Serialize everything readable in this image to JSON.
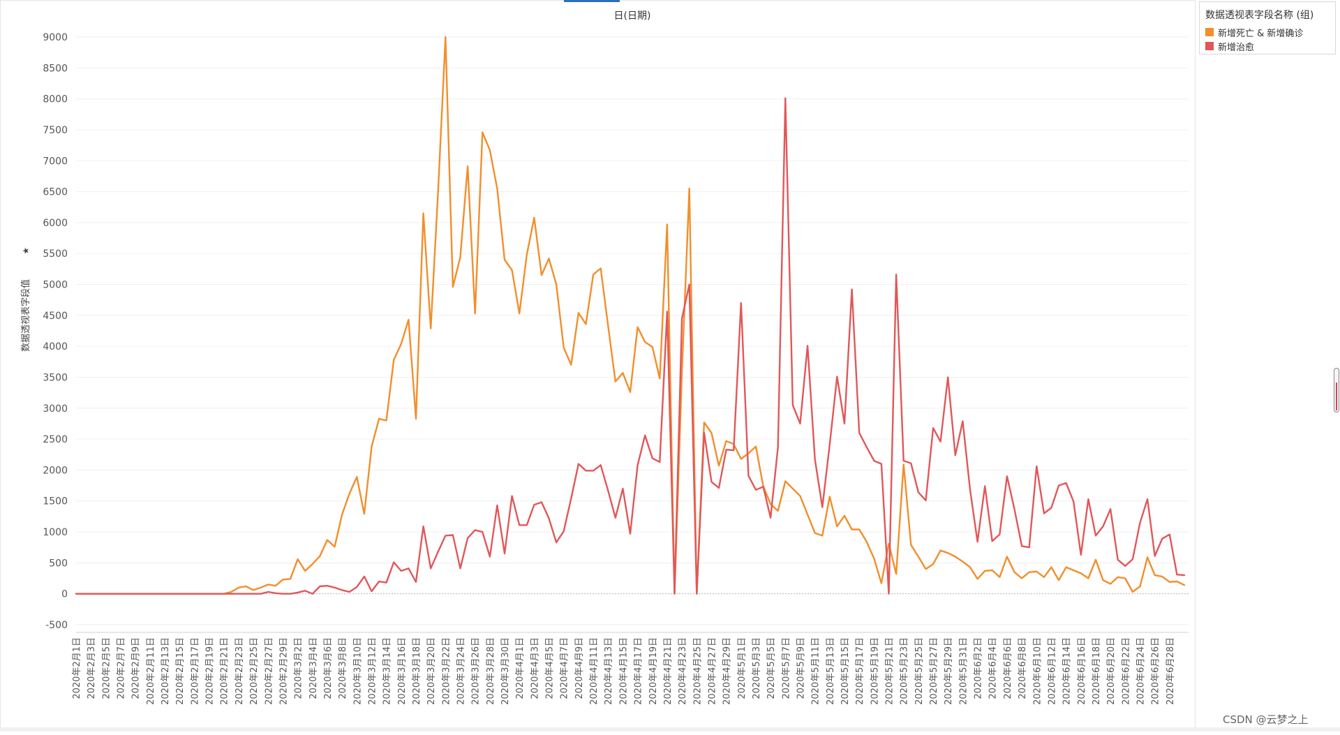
{
  "chart_data": {
    "type": "line",
    "title": "日(日期)",
    "ylabel": "数据透视表字段值",
    "ylim": [
      -500,
      9000
    ],
    "yticks": [
      -500,
      0,
      500,
      1000,
      1500,
      2000,
      2500,
      3000,
      3500,
      4000,
      4500,
      5000,
      5500,
      6000,
      6500,
      7000,
      7500,
      8000,
      8500,
      9000
    ],
    "x_start": "2020-02-01",
    "x_end": "2020-06-30",
    "x_tick_labels": [
      "2020年2月1日",
      "2020年2月3日",
      "2020年2月5日",
      "2020年2月7日",
      "2020年2月9日",
      "2020年2月11日",
      "2020年2月13日",
      "2020年2月15日",
      "2020年2月17日",
      "2020年2月19日",
      "2020年2月21日",
      "2020年2月23日",
      "2020年2月25日",
      "2020年2月27日",
      "2020年2月29日",
      "2020年3月2日",
      "2020年3月4日",
      "2020年3月6日",
      "2020年3月8日",
      "2020年3月10日",
      "2020年3月12日",
      "2020年3月14日",
      "2020年3月16日",
      "2020年3月18日",
      "2020年3月20日",
      "2020年3月22日",
      "2020年3月24日",
      "2020年3月26日",
      "2020年3月28日",
      "2020年3月30日",
      "2020年4月1日",
      "2020年4月3日",
      "2020年4月5日",
      "2020年4月7日",
      "2020年4月9日",
      "2020年4月11日",
      "2020年4月13日",
      "2020年4月15日",
      "2020年4月17日",
      "2020年4月19日",
      "2020年4月21日",
      "2020年4月23日",
      "2020年4月25日",
      "2020年4月27日",
      "2020年4月29日",
      "2020年5月1日",
      "2020年5月3日",
      "2020年5月5日",
      "2020年5月7日",
      "2020年5月9日",
      "2020年5月11日",
      "2020年5月13日",
      "2020年5月15日",
      "2020年5月17日",
      "2020年5月19日",
      "2020年5月21日",
      "2020年5月23日",
      "2020年5月25日",
      "2020年5月27日",
      "2020年5月29日",
      "2020年5月31日",
      "2020年6月2日",
      "2020年6月4日",
      "2020年6月6日",
      "2020年6月8日",
      "2020年6月10日",
      "2020年6月12日",
      "2020年6月14日",
      "2020年6月16日",
      "2020年6月18日",
      "2020年6月20日",
      "2020年6月22日",
      "2020年6月24日",
      "2020年6月26日",
      "2020年6月28日"
    ],
    "legend_title": "数据透视表字段名称 (组)",
    "legend_position": "top-right",
    "grid": true,
    "series": [
      {
        "name": "新增死亡 & 新增确诊",
        "color": "#f28e2b",
        "values": [
          0,
          0,
          0,
          0,
          0,
          0,
          0,
          0,
          0,
          0,
          0,
          0,
          0,
          0,
          0,
          0,
          0,
          0,
          0,
          0,
          0,
          30,
          100,
          120,
          60,
          100,
          150,
          130,
          230,
          240,
          560,
          370,
          480,
          610,
          870,
          760,
          1280,
          1620,
          1890,
          1290,
          2380,
          2830,
          2800,
          3780,
          4040,
          4430,
          2830,
          6150,
          4290,
          6500,
          9000,
          4960,
          5440,
          6910,
          4530,
          7460,
          7170,
          6550,
          5400,
          5230,
          4530,
          5480,
          6080,
          5150,
          5420,
          5000,
          3980,
          3700,
          4540,
          4360,
          5160,
          5260,
          4340,
          3430,
          3570,
          3260,
          4310,
          4070,
          3990,
          3480,
          5970,
          0,
          3590,
          6550,
          0,
          2770,
          2600,
          2070,
          2470,
          2420,
          2180,
          2270,
          2380,
          1740,
          1450,
          1340,
          1820,
          1700,
          1580,
          1280,
          980,
          940,
          1570,
          1090,
          1260,
          1040,
          1040,
          840,
          570,
          170,
          810,
          320,
          2090,
          790,
          600,
          400,
          480,
          700,
          660,
          600,
          520,
          430,
          240,
          370,
          380,
          270,
          600,
          350,
          250,
          350,
          360,
          270,
          430,
          220,
          430,
          380,
          330,
          250,
          550,
          220,
          160,
          270,
          250,
          30,
          120,
          590,
          300,
          280,
          190,
          200,
          140
        ]
      },
      {
        "name": "新增治愈",
        "color": "#e15759",
        "values": [
          0,
          0,
          0,
          0,
          0,
          0,
          0,
          0,
          0,
          0,
          0,
          0,
          0,
          0,
          0,
          0,
          0,
          0,
          0,
          0,
          0,
          0,
          0,
          0,
          0,
          0,
          30,
          10,
          0,
          0,
          20,
          50,
          0,
          120,
          130,
          100,
          60,
          30,
          110,
          280,
          40,
          200,
          180,
          510,
          370,
          410,
          190,
          1090,
          410,
          680,
          940,
          950,
          410,
          900,
          1030,
          1000,
          600,
          1430,
          650,
          1580,
          1110,
          1110,
          1440,
          1480,
          1220,
          830,
          1010,
          1540,
          2100,
          1990,
          1990,
          2080,
          1670,
          1230,
          1700,
          970,
          2080,
          2560,
          2190,
          2130,
          4560,
          0,
          4450,
          5000,
          0,
          2600,
          1810,
          1710,
          2330,
          2320,
          4700,
          1910,
          1680,
          1730,
          1230,
          2370,
          8010,
          3050,
          2750,
          4010,
          2170,
          1400,
          2410,
          3510,
          2750,
          4920,
          2600,
          2370,
          2150,
          2100,
          0,
          5160,
          2150,
          2110,
          1640,
          1510,
          2680,
          2460,
          3500,
          2240,
          2790,
          1680,
          840,
          1740,
          850,
          960,
          1900,
          1370,
          770,
          750,
          2060,
          1300,
          1390,
          1750,
          1790,
          1490,
          630,
          1530,
          940,
          1090,
          1370,
          550,
          450,
          560,
          1150,
          1530,
          610,
          890,
          960,
          310,
          300
        ]
      }
    ]
  },
  "legend": {
    "title": "数据透视表字段名称 (组)",
    "items": [
      {
        "label": "新增死亡 & 新增确诊",
        "color": "#f28e2b"
      },
      {
        "label": "新增治愈",
        "color": "#e15759"
      }
    ]
  },
  "watermark": "CSDN @云梦之上"
}
